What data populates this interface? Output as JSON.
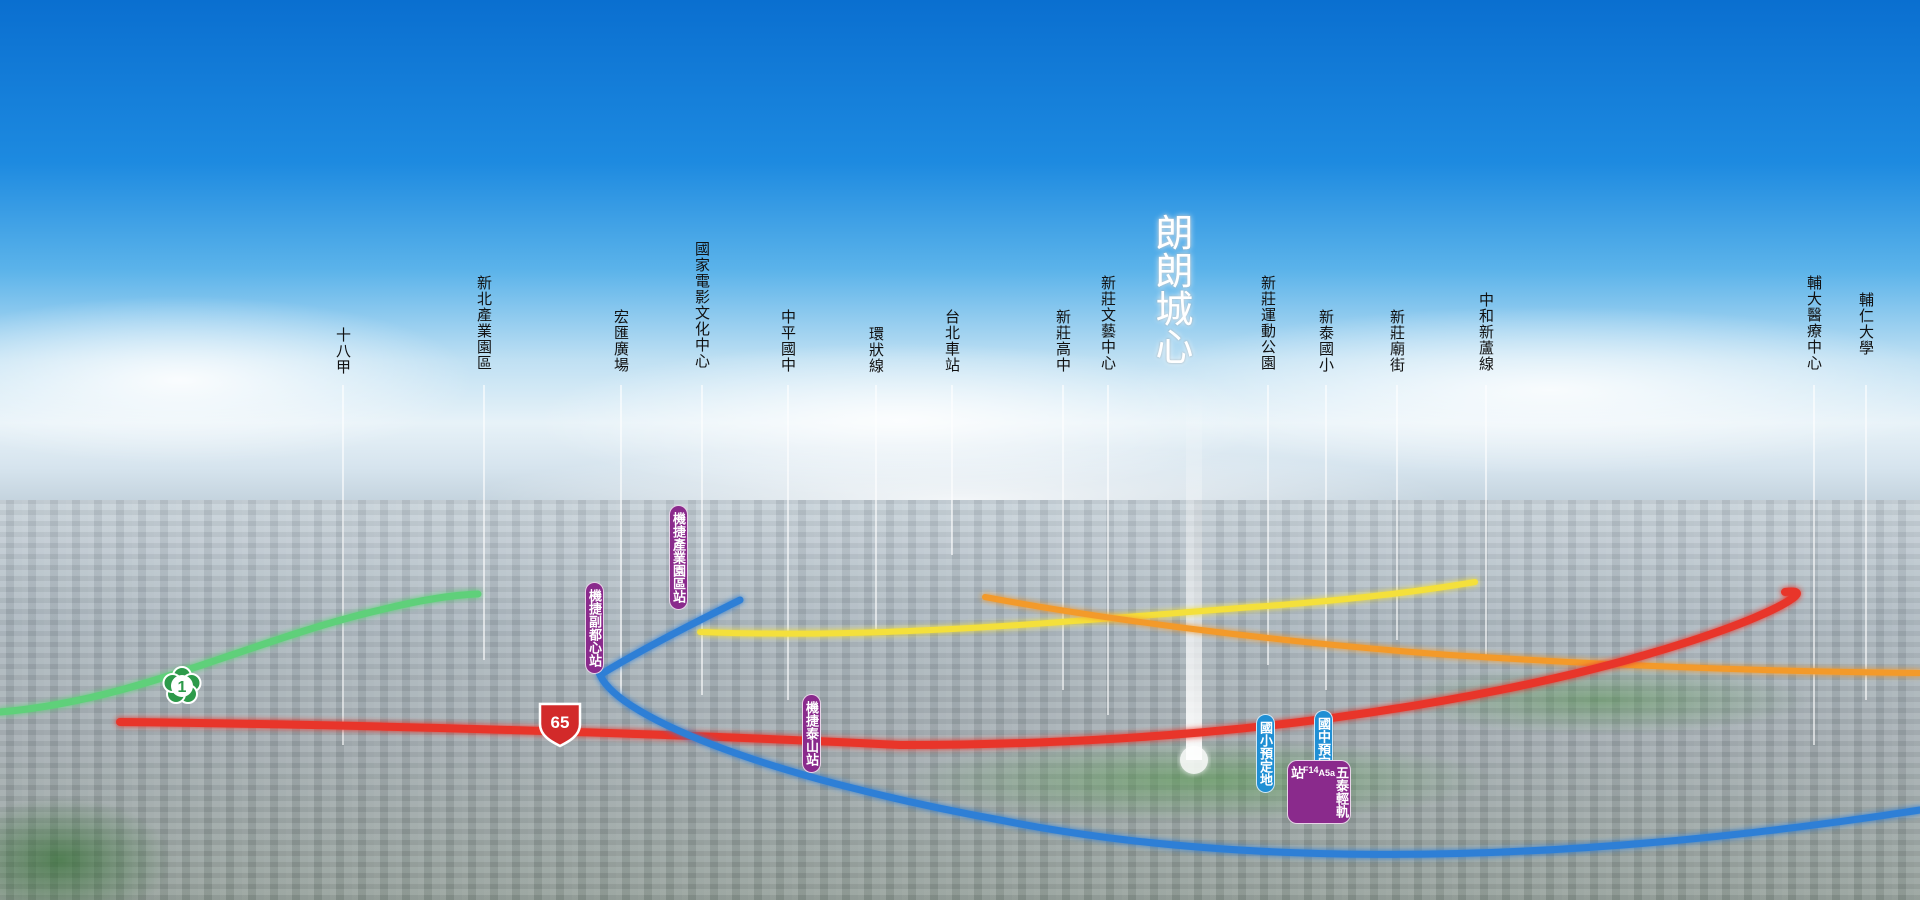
{
  "brand": {
    "title": "朗朗城心"
  },
  "landmarks": [
    {
      "id": "shibajia",
      "text": "十八甲"
    },
    {
      "id": "xinbei_industrial_park",
      "text": "新北產業園區"
    },
    {
      "id": "honghui_plaza",
      "text": "宏匯廣場"
    },
    {
      "id": "national_film_center",
      "text": "國家電影文化中心"
    },
    {
      "id": "zhongping_junior_high",
      "text": "中平國中"
    },
    {
      "id": "circular_line",
      "text": "環狀線"
    },
    {
      "id": "taipei_main_station",
      "text": "台北車站"
    },
    {
      "id": "xinzhuang_senior_high",
      "text": "新莊高中"
    },
    {
      "id": "xinzhuang_arts_center",
      "text": "新莊文藝中心"
    },
    {
      "id": "xinzhuang_sports_park",
      "text": "新莊運動公園"
    },
    {
      "id": "xintai_elementary",
      "text": "新泰國小"
    },
    {
      "id": "xinzhuang_temple_street",
      "text": "新莊廟街"
    },
    {
      "id": "zhonghe_xinlu_line",
      "text": "中和新蘆線"
    },
    {
      "id": "fju_hospital",
      "text": "輔大醫療中心"
    },
    {
      "id": "fju_university",
      "text": "輔仁大學"
    }
  ],
  "stations": [
    {
      "id": "mrt_industrial_park",
      "text": "機捷產業園區站",
      "color": "purple"
    },
    {
      "id": "mrt_sub_city_center",
      "text": "機捷副都心站",
      "color": "purple"
    },
    {
      "id": "mrt_taishan",
      "text": "機捷泰山站",
      "color": "purple"
    },
    {
      "id": "elementary_site",
      "text": "國小預定地",
      "color": "blue"
    },
    {
      "id": "junior_high_site",
      "text": "國中預定地",
      "color": "blue"
    },
    {
      "id": "wugu_tai_lrt",
      "text": "五泰輕軌",
      "sub1": "A5a",
      "sub2": "F14",
      "end": "站",
      "color": "purple"
    }
  ],
  "highway_badges": [
    {
      "id": "freeway_1",
      "text": "1",
      "shape": "plum-blossom",
      "color": "#2d9a4a"
    },
    {
      "id": "expressway_65",
      "text": "65",
      "shape": "shield",
      "color": "#d22a2a"
    }
  ],
  "route_colors": {
    "green_route": "#5fd07a",
    "red_route": "#e8362a",
    "blue_route": "#2e7fd6",
    "yellow_route": "#f4e03a",
    "orange_route": "#f39a2a"
  }
}
